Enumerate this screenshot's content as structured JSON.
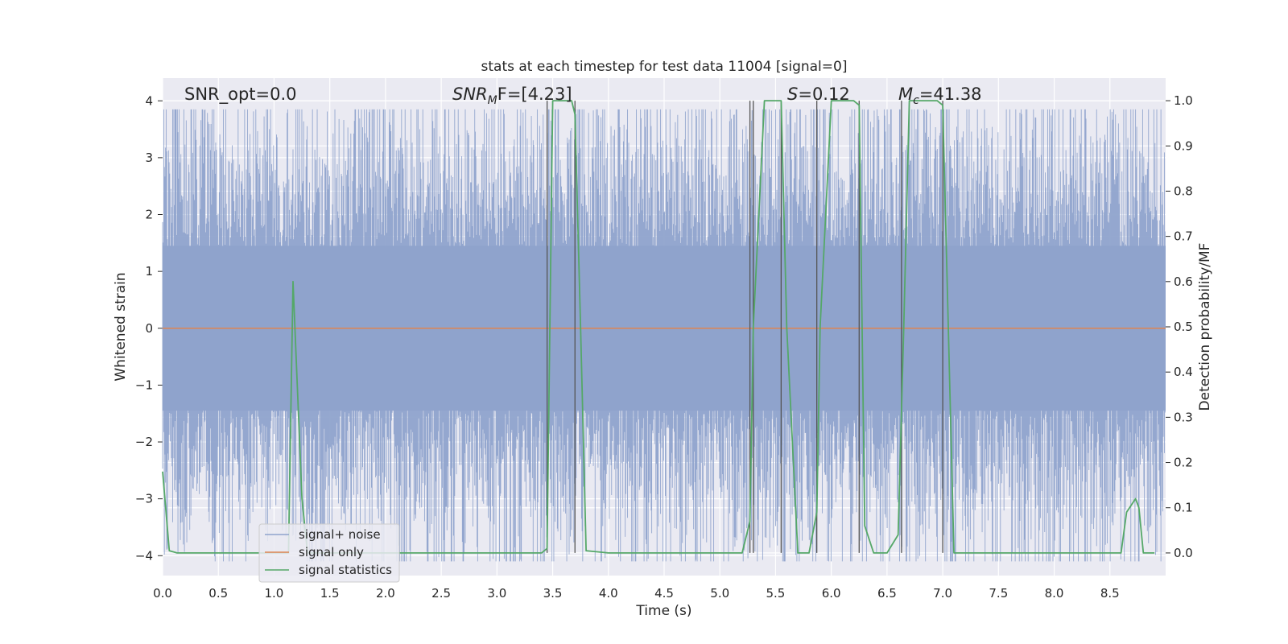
{
  "chart_data": {
    "type": "line",
    "title": "stats at each timestep for test data 11004 [signal=0]",
    "xlabel": "Time (s)",
    "ylabel": "Whitened strain",
    "y2label": "Detection probability/MF",
    "xlim": [
      0,
      9
    ],
    "ylim": [
      -4.35,
      4.4
    ],
    "y2lim": [
      -0.05,
      1.05
    ],
    "xticks": [
      "0.0",
      "0.5",
      "1.0",
      "1.5",
      "2.0",
      "2.5",
      "3.0",
      "3.5",
      "4.0",
      "4.5",
      "5.0",
      "5.5",
      "6.0",
      "6.5",
      "7.0",
      "7.5",
      "8.0",
      "8.5"
    ],
    "yticks": [
      "4",
      "3",
      "2",
      "1",
      "0",
      "−1",
      "−2",
      "−3",
      "−4"
    ],
    "y2ticks": [
      "1.0",
      "0.9",
      "0.8",
      "0.7",
      "0.6",
      "0.5",
      "0.4",
      "0.3",
      "0.2",
      "0.1",
      "0.0"
    ],
    "grid": true,
    "legend_position": "lower-left",
    "annotations": {
      "snr_opt": "SNR_opt=0.0",
      "snr_mf_main": "SNR",
      "snr_mf_sub": "M",
      "snr_mf_rest": "F=[4.23]",
      "s_var": "S",
      "s_rest": "=0.12",
      "mc_main": "M",
      "mc_sub": "c",
      "mc_rest": "=41.38"
    },
    "series": [
      {
        "name": "signal+ noise",
        "color": "#8fa3cc",
        "amplitude_std": 1.05,
        "description_values": "noise between -4 and 4"
      },
      {
        "name": "signal only",
        "color": "#dd8452",
        "values_constant": 0
      },
      {
        "name": "signal statistics",
        "color": "#55a868",
        "axis": "right",
        "x": [
          0.0,
          0.06,
          0.13,
          0.25,
          0.5,
          0.75,
          1.0,
          1.13,
          1.17,
          1.25,
          1.3,
          1.5,
          2.0,
          2.5,
          3.0,
          3.4,
          3.45,
          3.5,
          3.6,
          3.67,
          3.7,
          3.75,
          3.8,
          4.0,
          4.5,
          5.0,
          5.2,
          5.27,
          5.3,
          5.4,
          5.5,
          5.55,
          5.6,
          5.7,
          5.8,
          5.87,
          5.9,
          6.0,
          6.1,
          6.2,
          6.25,
          6.3,
          6.38,
          6.5,
          6.6,
          6.65,
          6.7,
          6.8,
          6.95,
          7.0,
          7.05,
          7.1,
          7.5,
          8.0,
          8.5,
          8.6,
          8.65,
          8.73,
          8.76,
          8.8,
          8.9
        ],
        "y": [
          0.18,
          0.005,
          0.0,
          0.0,
          0.0,
          0.0,
          0.0,
          0.0,
          0.6,
          0.12,
          0.0,
          0.0,
          0.0,
          0.0,
          0.0,
          0.0,
          0.01,
          1.0,
          1.0,
          1.0,
          0.97,
          0.5,
          0.005,
          0.0,
          0.0,
          0.0,
          0.0,
          0.07,
          0.5,
          1.0,
          1.0,
          1.0,
          0.5,
          0.0,
          0.0,
          0.09,
          0.5,
          1.0,
          1.0,
          1.0,
          0.99,
          0.06,
          0.0,
          0.0,
          0.04,
          0.5,
          1.0,
          1.0,
          1.0,
          0.99,
          0.5,
          0.0,
          0.0,
          0.0,
          0.0,
          0.0,
          0.09,
          0.12,
          0.1,
          0.0,
          0.0
        ]
      }
    ],
    "vertical_lines_x": [
      3.45,
      3.7,
      5.27,
      5.3,
      5.55,
      5.87,
      6.25,
      6.63,
      7.0
    ]
  }
}
